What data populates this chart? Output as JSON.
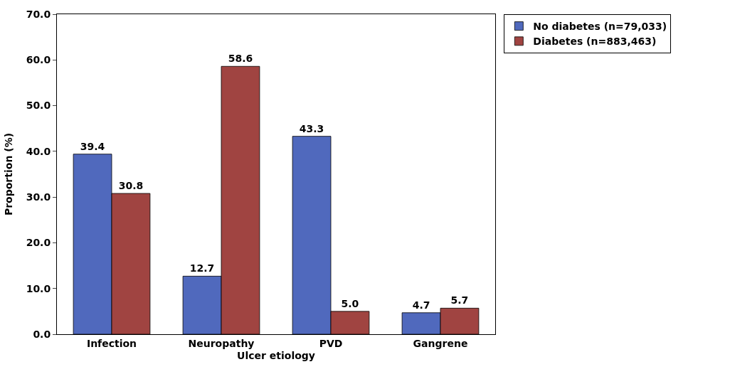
{
  "chart_data": {
    "type": "bar",
    "xlabel": "Ulcer etiology",
    "ylabel": "Proportion (%)",
    "categories": [
      "Infection",
      "Neuropathy",
      "PVD",
      "Gangrene"
    ],
    "series": [
      {
        "name": "No diabetes (n=79,033)",
        "color": "#5069bd",
        "values": [
          39.4,
          12.7,
          43.3,
          4.7
        ],
        "value_labels": [
          "39.4",
          "12.7",
          "43.3",
          "4.7"
        ]
      },
      {
        "name": "Diabetes (n=883,463)",
        "color": "#a04441",
        "values": [
          30.8,
          58.6,
          5.0,
          5.7
        ],
        "value_labels": [
          "30.8",
          "58.6",
          "5.0",
          "5.7"
        ]
      }
    ],
    "ylim": [
      0,
      70
    ],
    "yticks": [
      {
        "value": 0,
        "label": "0.0"
      },
      {
        "value": 10,
        "label": "10.0"
      },
      {
        "value": 20,
        "label": "20.0"
      },
      {
        "value": 30,
        "label": "30.0"
      },
      {
        "value": 40,
        "label": "40.0"
      },
      {
        "value": 50,
        "label": "50.0"
      },
      {
        "value": 60,
        "label": "60.0"
      },
      {
        "value": 70,
        "label": "70.0"
      }
    ],
    "legend": "top right"
  }
}
